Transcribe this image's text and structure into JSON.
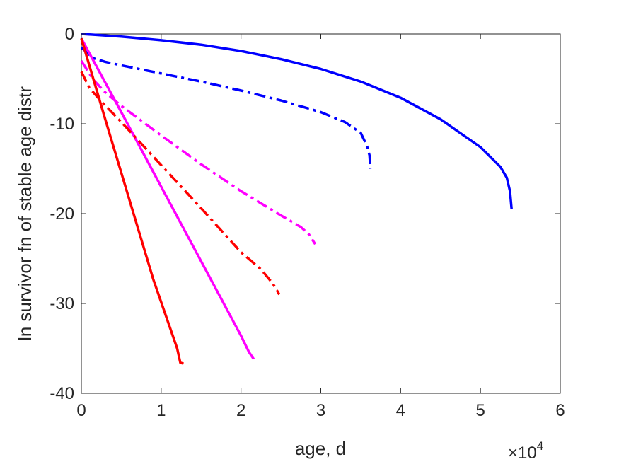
{
  "chart_data": {
    "type": "line",
    "title": "",
    "xlabel": "age, d",
    "ylabel": "ln survivor fn of stable age distr",
    "x_exponent_label": "×10",
    "x_exponent_power": "4",
    "x_multiplier": 10000,
    "xlim": [
      0,
      60000
    ],
    "ylim": [
      -40,
      0
    ],
    "x_ticks": [
      0,
      10000,
      20000,
      30000,
      40000,
      50000,
      60000
    ],
    "x_tick_labels": [
      "0",
      "1",
      "2",
      "3",
      "4",
      "5",
      "6"
    ],
    "y_ticks": [
      0,
      -10,
      -20,
      -30,
      -40
    ],
    "y_tick_labels": [
      "0",
      "-10",
      "-20",
      "-30",
      "-40"
    ],
    "grid": false,
    "legend": "none",
    "series": [
      {
        "color": "#0000ff",
        "dash": "solid",
        "points": [
          [
            0,
            0
          ],
          [
            5000,
            -0.3
          ],
          [
            10000,
            -0.7
          ],
          [
            15000,
            -1.2
          ],
          [
            20000,
            -1.9
          ],
          [
            25000,
            -2.8
          ],
          [
            30000,
            -3.9
          ],
          [
            35000,
            -5.3
          ],
          [
            40000,
            -7.1
          ],
          [
            45000,
            -9.5
          ],
          [
            50000,
            -12.6
          ],
          [
            52500,
            -14.8
          ],
          [
            53300,
            -16.0
          ],
          [
            53700,
            -17.5
          ],
          [
            53900,
            -19.5
          ]
        ]
      },
      {
        "color": "#0000ff",
        "dash": "dashdot",
        "points": [
          [
            0,
            -1.5
          ],
          [
            1500,
            -2.7
          ],
          [
            3000,
            -3.1
          ],
          [
            5000,
            -3.5
          ],
          [
            10000,
            -4.4
          ],
          [
            15000,
            -5.3
          ],
          [
            20000,
            -6.3
          ],
          [
            25000,
            -7.4
          ],
          [
            30000,
            -8.7
          ],
          [
            33000,
            -9.8
          ],
          [
            35000,
            -11.0
          ],
          [
            35800,
            -12.5
          ],
          [
            36100,
            -13.5
          ],
          [
            36200,
            -15.0
          ]
        ]
      },
      {
        "color": "#ff00ff",
        "dash": "solid",
        "points": [
          [
            0,
            -0.5
          ],
          [
            5000,
            -8.7
          ],
          [
            10000,
            -17.0
          ],
          [
            15000,
            -25.3
          ],
          [
            20000,
            -33.6
          ],
          [
            21000,
            -35.4
          ],
          [
            21600,
            -36.2
          ]
        ]
      },
      {
        "color": "#ff00ff",
        "dash": "dashdot",
        "points": [
          [
            0,
            -3.0
          ],
          [
            1500,
            -5.1
          ],
          [
            3000,
            -6.5
          ],
          [
            5000,
            -8.0
          ],
          [
            10000,
            -11.3
          ],
          [
            15000,
            -14.5
          ],
          [
            20000,
            -17.5
          ],
          [
            25000,
            -20.2
          ],
          [
            27500,
            -21.5
          ],
          [
            28500,
            -22.3
          ],
          [
            29300,
            -23.4
          ]
        ]
      },
      {
        "color": "#ff0000",
        "dash": "solid",
        "points": [
          [
            0,
            -0.5
          ],
          [
            3000,
            -9.5
          ],
          [
            6000,
            -18.4
          ],
          [
            9000,
            -27.3
          ],
          [
            12000,
            -35.0
          ],
          [
            12400,
            -36.6
          ],
          [
            12800,
            -36.7
          ]
        ]
      },
      {
        "color": "#ff0000",
        "dash": "dashdot",
        "points": [
          [
            0,
            -4.2
          ],
          [
            1000,
            -6.0
          ],
          [
            2500,
            -7.5
          ],
          [
            5000,
            -9.8
          ],
          [
            10000,
            -14.6
          ],
          [
            15000,
            -19.4
          ],
          [
            20000,
            -24.3
          ],
          [
            22500,
            -26.2
          ],
          [
            24000,
            -27.8
          ],
          [
            24800,
            -29.0
          ]
        ]
      }
    ]
  }
}
